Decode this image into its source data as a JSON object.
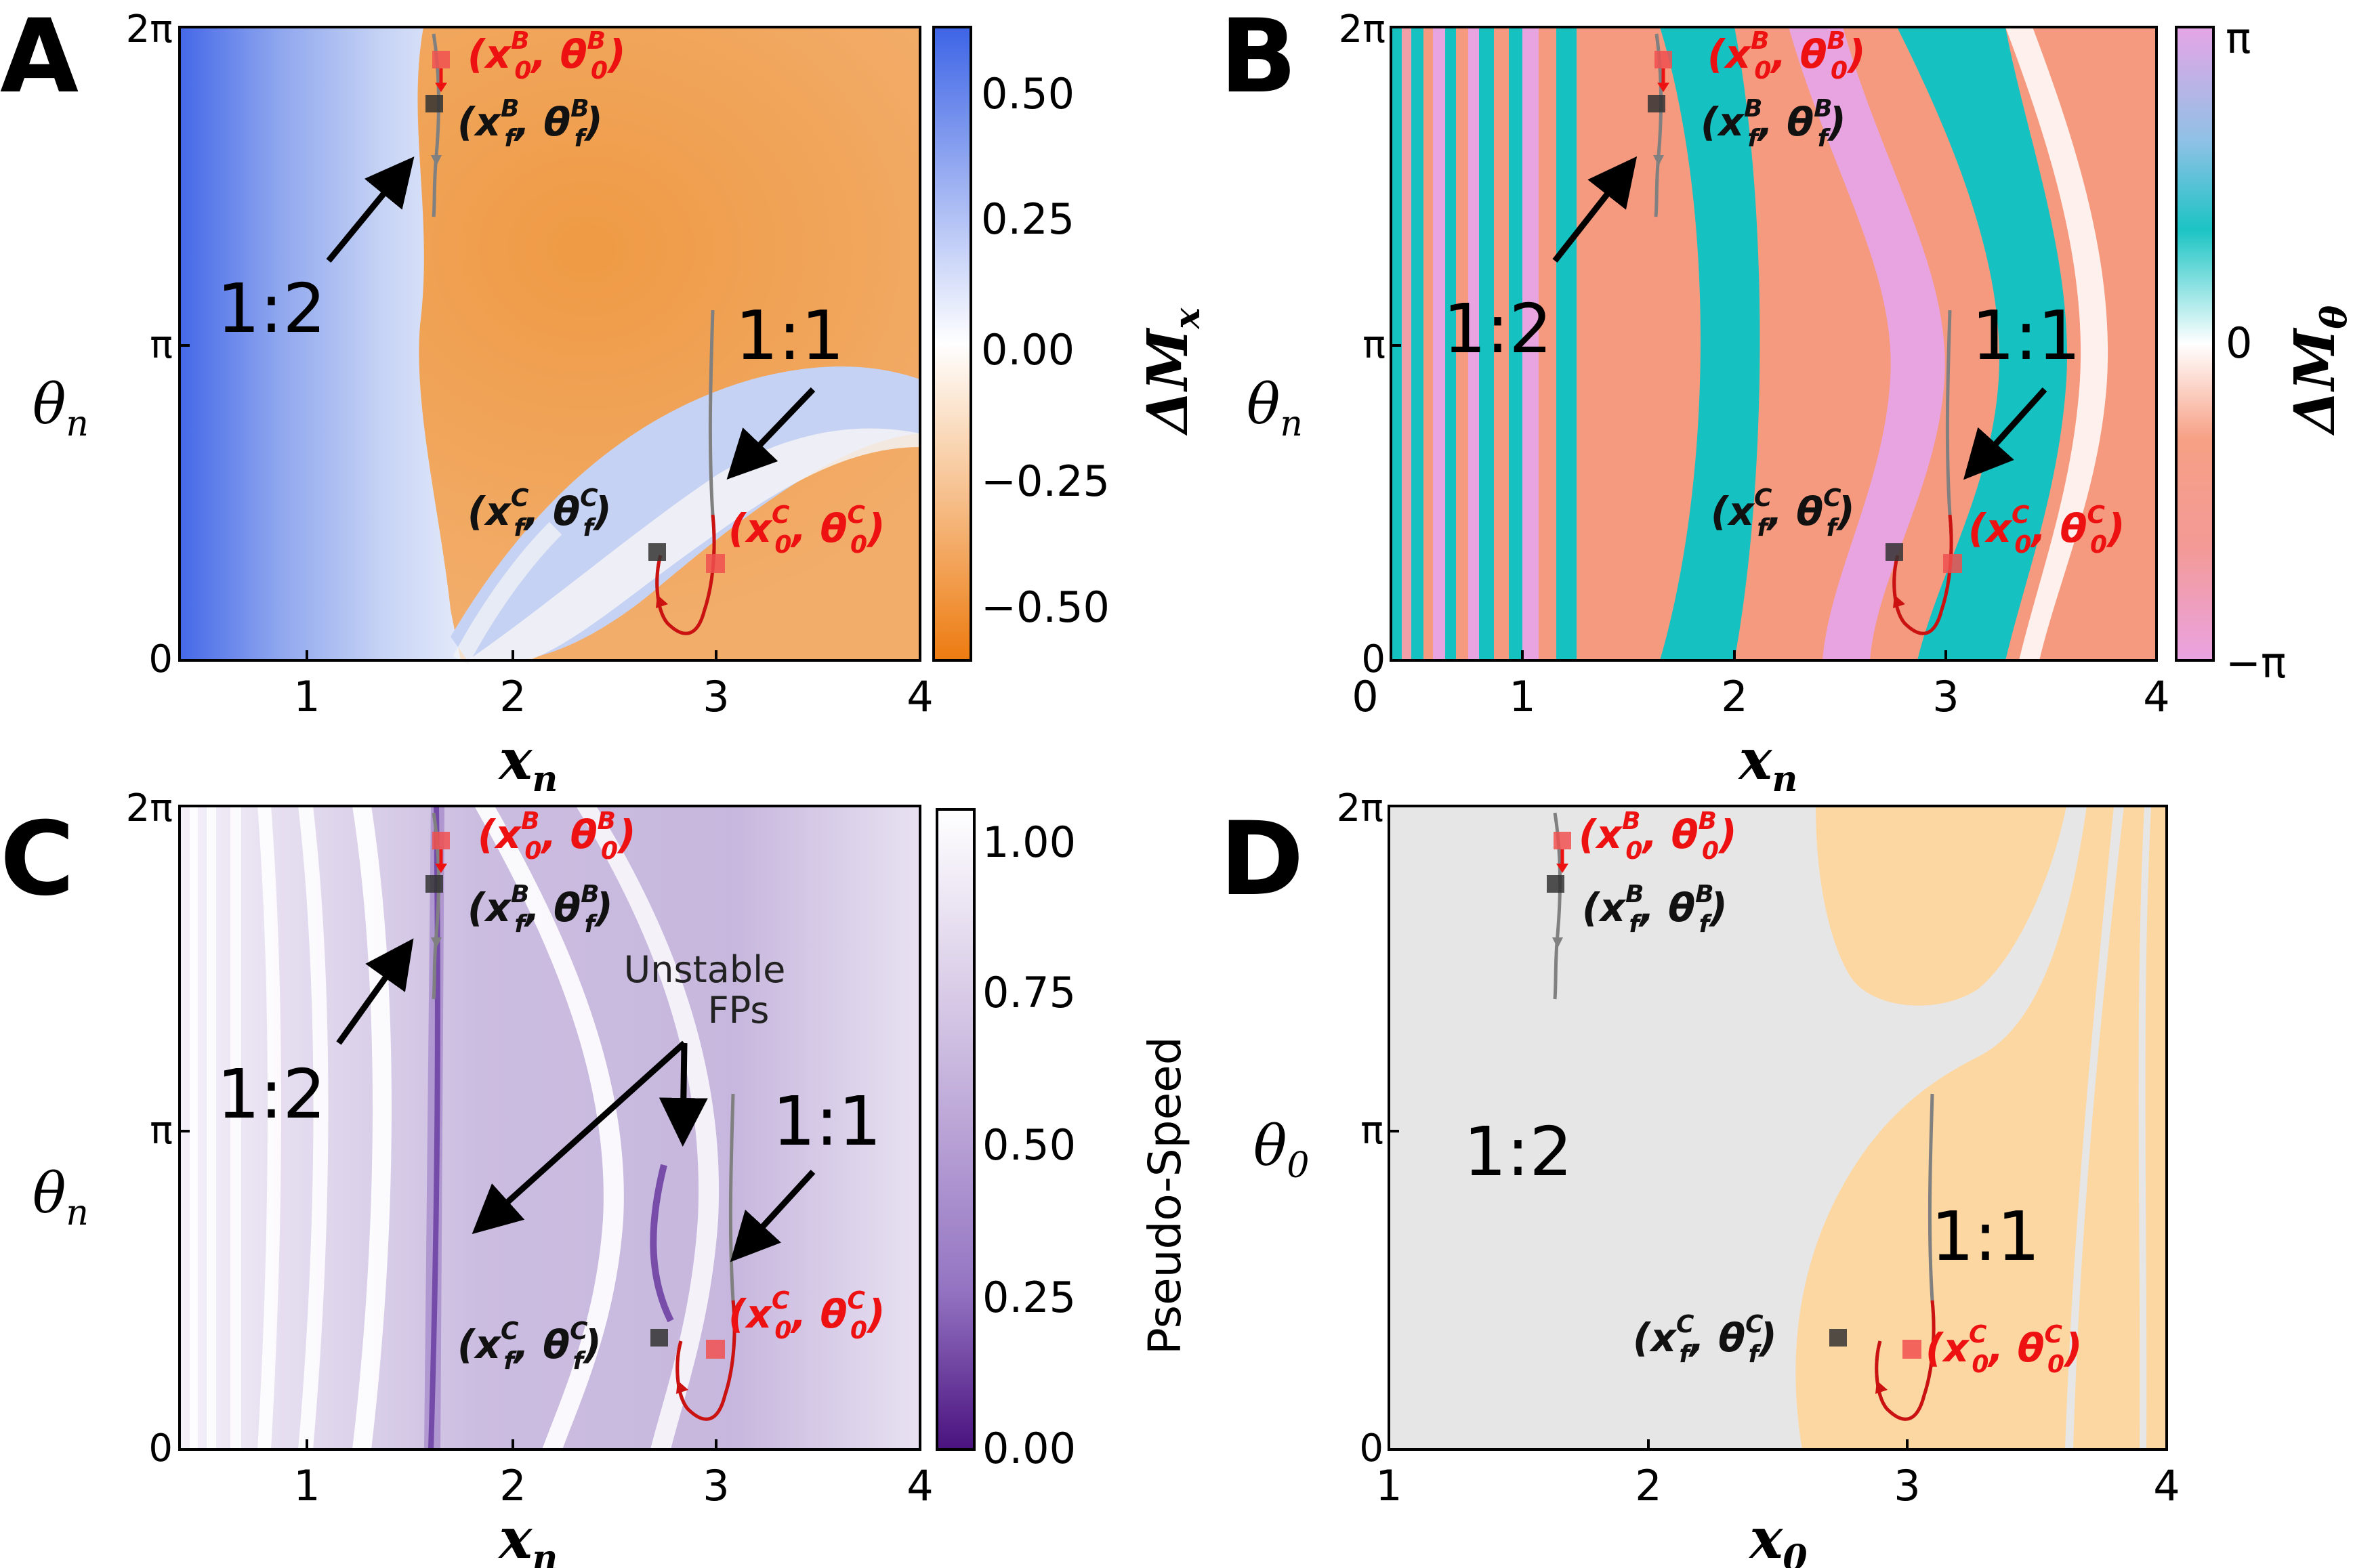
{
  "figure": {
    "panels": [
      {
        "letter": "A",
        "ylabel_sym": "θ",
        "ylabel_sub": "n",
        "xlabel_sym": "x",
        "xlabel_sub": "n",
        "xticks": [
          "1",
          "2",
          "3",
          "4"
        ],
        "yticks": [
          "0",
          "π",
          "2π"
        ],
        "colorbar": {
          "label": "ΔMx",
          "label_sym": "ΔM",
          "label_sub": "x",
          "ticks": [
            "0.50",
            "0.25",
            "0.00",
            "−0.25",
            "−0.50"
          ]
        },
        "annotations": [
          "1:2",
          "1:1"
        ],
        "points": [
          {
            "id": "x0B",
            "sym": "x",
            "sup": "B",
            "sub": "0",
            "tsym": "θ",
            "tsup": "B",
            "tsub": "0",
            "color": "#ee1111"
          },
          {
            "id": "xfB",
            "sym": "x",
            "sup": "B",
            "sub": "f",
            "tsym": "θ",
            "tsup": "B",
            "tsub": "f",
            "color": "#111111"
          },
          {
            "id": "xfC",
            "sym": "x",
            "sup": "C",
            "sub": "f",
            "tsym": "θ",
            "tsup": "C",
            "tsub": "f",
            "color": "#111111"
          },
          {
            "id": "x0C",
            "sym": "x",
            "sup": "C",
            "sub": "0",
            "tsym": "θ",
            "tsup": "C",
            "tsub": "0",
            "color": "#ee1111"
          }
        ]
      },
      {
        "letter": "B",
        "ylabel_sym": "θ",
        "ylabel_sub": "n",
        "xlabel_sym": "x",
        "xlabel_sub": "n",
        "xticks": [
          "0",
          "1",
          "2",
          "3",
          "4"
        ],
        "yticks": [
          "0",
          "π",
          "2π"
        ],
        "colorbar": {
          "label": "ΔMθ",
          "label_sym": "ΔM",
          "label_sub": "θ",
          "ticks": [
            "π",
            "0",
            "−π"
          ]
        },
        "annotations": [
          "1:2",
          "1:1"
        ]
      },
      {
        "letter": "C",
        "ylabel_sym": "θ",
        "ylabel_sub": "n",
        "xlabel_sym": "x",
        "xlabel_sub": "n",
        "xticks": [
          "1",
          "2",
          "3",
          "4"
        ],
        "yticks": [
          "0",
          "π",
          "2π"
        ],
        "colorbar": {
          "label": "Pseudo-Speed",
          "ticks": [
            "1.00",
            "0.75",
            "0.50",
            "0.25",
            "0.00"
          ]
        },
        "annotations": [
          "1:2",
          "1:1"
        ],
        "fp_label_line1": "Unstable",
        "fp_label_line2": "FPs"
      },
      {
        "letter": "D",
        "ylabel_sym": "θ",
        "ylabel_sub": "0",
        "xlabel_sym": "x",
        "xlabel_sub": "0",
        "xticks": [
          "1",
          "2",
          "3",
          "4"
        ],
        "yticks": [
          "0",
          "π",
          "2π"
        ],
        "annotations": [
          "1:2",
          "1:1"
        ]
      }
    ],
    "colors": {
      "blue": "#4a6fe3",
      "orange": "#ee7f1c",
      "teal": "#15c1c1",
      "salmon": "#f59a7f",
      "lilac": "#e7a4e0",
      "purple": "#4b1a8a",
      "grey_region": "#e6e6e6",
      "peach_region": "#fdd7a2",
      "traj_grey": "#808080",
      "traj_red": "#cc1111",
      "marker_red": "#f05050",
      "marker_black": "#333333"
    }
  },
  "chart_data": [
    {
      "panel": "A",
      "type": "heatmap",
      "xlabel": "x_n",
      "ylabel": "θ_n",
      "xlim": [
        0.4,
        4
      ],
      "ylim": [
        0,
        6.2832
      ],
      "colorbar_label": "ΔM_x",
      "colorbar_range": [
        -0.62,
        0.62
      ],
      "colorbar_ticks": [
        0.5,
        0.25,
        0.0,
        -0.25,
        -0.5
      ],
      "regions": [
        {
          "name": "1:2",
          "sign": "positive (blue)"
        },
        {
          "name": "1:1",
          "sign": "negative (orange)"
        }
      ],
      "trajectories": [
        {
          "label": "B",
          "color": "grey",
          "start": [
            1.68,
            5.8
          ],
          "end": [
            1.66,
            5.35
          ]
        },
        {
          "label": "C",
          "color": "grey→red",
          "start": [
            3.02,
            0.97
          ],
          "end": [
            2.74,
            1.07
          ]
        }
      ]
    },
    {
      "panel": "B",
      "type": "heatmap",
      "xlabel": "x_n",
      "ylabel": "θ_n",
      "xlim": [
        0.4,
        4
      ],
      "ylim": [
        0,
        6.2832
      ],
      "colorbar_label": "ΔM_θ",
      "colorbar_range": [
        -3.1416,
        3.1416
      ],
      "colorbar_ticks": [
        "π",
        "0",
        "−π"
      ]
    },
    {
      "panel": "C",
      "type": "heatmap",
      "xlabel": "x_n",
      "ylabel": "θ_n",
      "xlim": [
        0.4,
        4
      ],
      "ylim": [
        0,
        6.2832
      ],
      "colorbar_label": "Pseudo-Speed",
      "colorbar_range": [
        0,
        1.05
      ],
      "colorbar_ticks": [
        1.0,
        0.75,
        0.5,
        0.25,
        0.0
      ],
      "unstable_fps": [
        [
          1.64,
          2.1
        ],
        [
          2.82,
          2.6
        ]
      ]
    },
    {
      "panel": "D",
      "type": "heatmap",
      "xlabel": "x_0",
      "ylabel": "θ_0",
      "xlim": [
        1,
        4
      ],
      "ylim": [
        0,
        6.2832
      ],
      "regions": [
        {
          "name": "1:2",
          "color": "grey"
        },
        {
          "name": "1:1",
          "color": "peach"
        }
      ]
    }
  ]
}
